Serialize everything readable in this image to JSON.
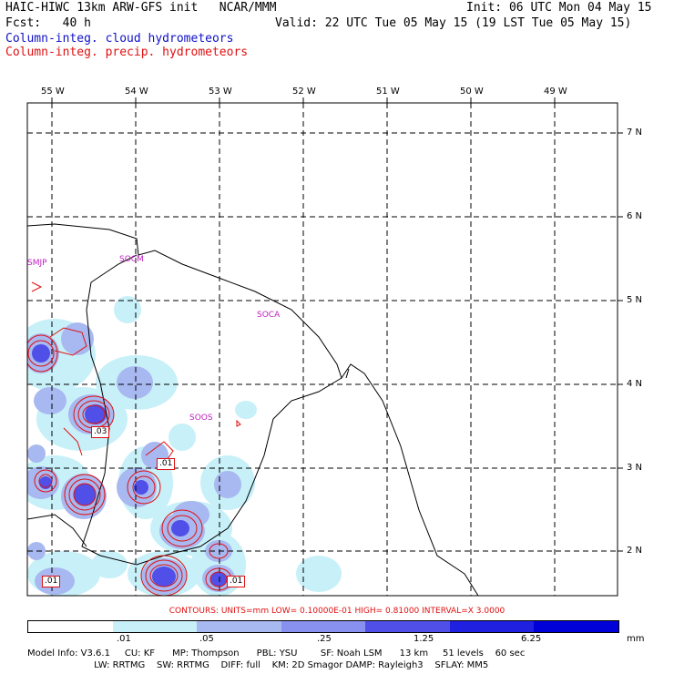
{
  "header": {
    "line1_left": "HAIC-HIWC 13km ARW-GFS init   NCAR/MMM",
    "line1_right": "Init: 06 UTC Mon 04 May 15",
    "line2_left": "Fcst:   40 h",
    "line2_right": "Valid: 22 UTC Tue 05 May 15 (19 LST Tue 05 May 15)",
    "field1": "Column-integ. cloud hydrometeors",
    "field2": "Column-integ. precip. hydrometeors"
  },
  "map": {
    "longitudes": [
      "55 W",
      "54 W",
      "53 W",
      "52 W",
      "51 W",
      "50 W",
      "49 W"
    ],
    "latitudes": [
      "7 N",
      "6 N",
      "5 N",
      "4 N",
      "3 N",
      "2 N"
    ],
    "stations": [
      "SMJP",
      "SOCM",
      "SOCA",
      "SOOS"
    ],
    "contour_labels": [
      ".03",
      ".01",
      ".01",
      ".01"
    ]
  },
  "contours_line": "CONTOURS:  UNITS=mm   LOW= 0.10000E-01   HIGH= 0.81000      INTERVAL=X  3.0000",
  "colorbar": {
    "colors": [
      "#ffffff",
      "#c8f0f8",
      "#a8b8f0",
      "#8890f0",
      "#5050e8",
      "#2020e0",
      "#0000d8"
    ],
    "labels": [
      ".01",
      ".05",
      ".25",
      "1.25",
      "6.25",
      "mm"
    ]
  },
  "model_info": {
    "line1": "Model Info: V3.6.1     CU: KF      MP: Thompson      PBL: YSU        SF: Noah LSM      13 km     51 levels    60 sec",
    "line2": "                       LW: RRTMG    SW: RRTMG    DIFF: full    KM: 2D Smagor DAMP: Rayleigh3    SFLAY: MM5"
  }
}
